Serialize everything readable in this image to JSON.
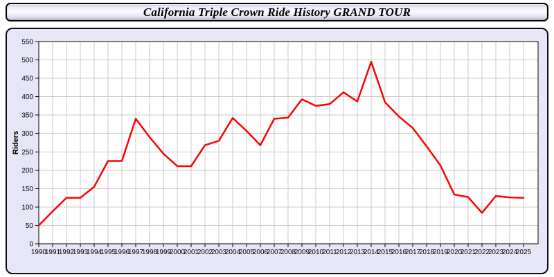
{
  "window": {
    "title": "California Triple Crown Ride History GRAND TOUR"
  },
  "chart_data": {
    "type": "line",
    "title": "California Triple Crown Ride History GRAND TOUR",
    "xlabel": "",
    "ylabel": "Riders",
    "x": [
      1990,
      1991,
      1992,
      1993,
      1994,
      1995,
      1996,
      1997,
      1998,
      1999,
      2000,
      2001,
      2002,
      2003,
      2004,
      2005,
      2006,
      2007,
      2008,
      2009,
      2010,
      2011,
      2012,
      2013,
      2014,
      2015,
      2016,
      2017,
      2018,
      2019,
      2020,
      2021,
      2022,
      2023,
      2024,
      2025
    ],
    "series": [
      {
        "name": "Riders",
        "color": "#ff0000",
        "values": [
          50,
          88,
          125,
          125,
          155,
          225,
          225,
          340,
          290,
          245,
          211,
          211,
          268,
          280,
          342,
          307,
          268,
          340,
          343,
          393,
          375,
          380,
          412,
          387,
          495,
          385,
          346,
          315,
          265,
          213,
          134,
          127,
          84,
          130,
          126,
          125
        ]
      }
    ],
    "ylim": [
      0,
      550
    ],
    "ytick_interval": 50,
    "yticks": [
      0,
      50,
      100,
      150,
      200,
      250,
      300,
      350,
      400,
      450,
      500,
      550
    ],
    "grid": true,
    "legend_position": "none",
    "colors": {
      "line": "#ff0000",
      "plot_background": "#ffffff",
      "panel_background": "#e6e6f6",
      "grid": "#cacaca",
      "axis": "#000000",
      "tick_label": "#000000"
    }
  }
}
